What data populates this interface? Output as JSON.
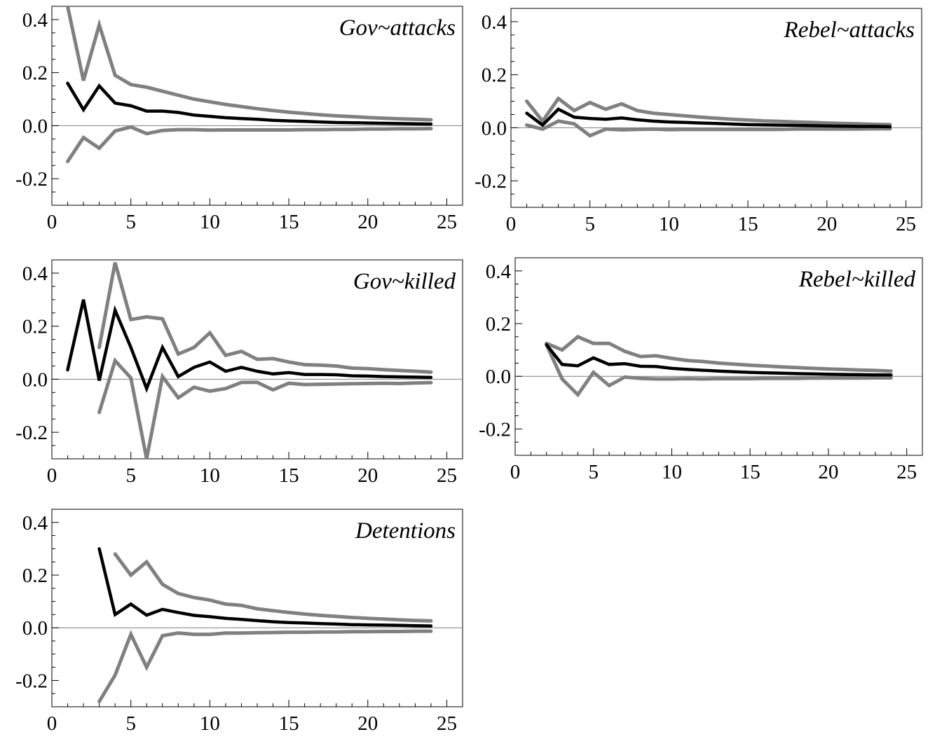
{
  "chart_data": [
    {
      "type": "line",
      "title": "Gov~attacks",
      "xlabel": "",
      "ylabel": "",
      "xlim": [
        0,
        26
      ],
      "ylim": [
        -0.3,
        0.45
      ],
      "xticks": [
        0,
        5,
        10,
        15,
        20,
        25
      ],
      "xtick_labels": [
        "0",
        "5",
        "10",
        "15",
        "20",
        "25"
      ],
      "yticks": [
        -0.2,
        0.0,
        0.2,
        0.4
      ],
      "ytick_labels": [
        "-0.2",
        "0.0",
        "0.2",
        "0.4"
      ],
      "zero_line": true,
      "series": [
        {
          "role": "estimate",
          "color": "#000000",
          "x": [
            1,
            2,
            3,
            4,
            5,
            6,
            7,
            8,
            9,
            10,
            11,
            12,
            13,
            14,
            15,
            16,
            17,
            18,
            19,
            20,
            21,
            22,
            23,
            24
          ],
          "values": [
            0.16,
            0.06,
            0.15,
            0.085,
            0.075,
            0.055,
            0.055,
            0.05,
            0.04,
            0.035,
            0.03,
            0.027,
            0.024,
            0.02,
            0.018,
            0.016,
            0.014,
            0.012,
            0.011,
            0.01,
            0.009,
            0.008,
            0.007,
            0.006
          ]
        },
        {
          "role": "upper band",
          "color": "#808080",
          "x": [
            1,
            2,
            3,
            4,
            5,
            6,
            7,
            8,
            9,
            10,
            11,
            12,
            13,
            14,
            15,
            16,
            17,
            18,
            19,
            20,
            21,
            22,
            23,
            24
          ],
          "values": [
            0.45,
            0.17,
            0.38,
            0.19,
            0.155,
            0.145,
            0.13,
            0.115,
            0.1,
            0.09,
            0.08,
            0.072,
            0.064,
            0.057,
            0.051,
            0.046,
            0.041,
            0.037,
            0.034,
            0.031,
            0.028,
            0.026,
            0.024,
            0.022
          ]
        },
        {
          "role": "lower band",
          "color": "#808080",
          "x": [
            1,
            2,
            3,
            4,
            5,
            6,
            7,
            8,
            9,
            10,
            11,
            12,
            13,
            14,
            15,
            16,
            17,
            18,
            19,
            20,
            21,
            22,
            23,
            24
          ],
          "values": [
            -0.135,
            -0.045,
            -0.085,
            -0.02,
            -0.005,
            -0.03,
            -0.018,
            -0.015,
            -0.015,
            -0.017,
            -0.016,
            -0.016,
            -0.016,
            -0.016,
            -0.016,
            -0.015,
            -0.015,
            -0.014,
            -0.014,
            -0.013,
            -0.013,
            -0.012,
            -0.012,
            -0.011
          ]
        }
      ]
    },
    {
      "type": "line",
      "title": "Rebel~attacks",
      "xlabel": "",
      "ylabel": "",
      "xlim": [
        0,
        26
      ],
      "ylim": [
        -0.3,
        0.45
      ],
      "xticks": [
        0,
        5,
        10,
        15,
        20,
        25
      ],
      "xtick_labels": [
        "0",
        "5",
        "10",
        "15",
        "20",
        "25"
      ],
      "yticks": [
        -0.2,
        0.0,
        0.2,
        0.4
      ],
      "ytick_labels": [
        "-0.2",
        "0.0",
        "0.2",
        "0.4"
      ],
      "zero_line": true,
      "series": [
        {
          "role": "estimate",
          "color": "#000000",
          "x": [
            1,
            2,
            3,
            4,
            5,
            6,
            7,
            8,
            9,
            10,
            11,
            12,
            13,
            14,
            15,
            16,
            17,
            18,
            19,
            20,
            21,
            22,
            23,
            24
          ],
          "values": [
            0.055,
            0.01,
            0.07,
            0.04,
            0.035,
            0.032,
            0.037,
            0.03,
            0.025,
            0.022,
            0.02,
            0.018,
            0.016,
            0.014,
            0.012,
            0.011,
            0.01,
            0.009,
            0.008,
            0.007,
            0.006,
            0.005,
            0.005,
            0.004
          ]
        },
        {
          "role": "upper band",
          "color": "#808080",
          "x": [
            1,
            2,
            3,
            4,
            5,
            6,
            7,
            8,
            9,
            10,
            11,
            12,
            13,
            14,
            15,
            16,
            17,
            18,
            19,
            20,
            21,
            22,
            23,
            24
          ],
          "values": [
            0.1,
            0.025,
            0.11,
            0.065,
            0.095,
            0.07,
            0.09,
            0.065,
            0.055,
            0.05,
            0.045,
            0.04,
            0.036,
            0.032,
            0.029,
            0.026,
            0.024,
            0.022,
            0.02,
            0.018,
            0.016,
            0.015,
            0.013,
            0.012
          ]
        },
        {
          "role": "lower band",
          "color": "#808080",
          "x": [
            1,
            2,
            3,
            4,
            5,
            6,
            7,
            8,
            9,
            10,
            11,
            12,
            13,
            14,
            15,
            16,
            17,
            18,
            19,
            20,
            21,
            22,
            23,
            24
          ],
          "values": [
            0.01,
            -0.005,
            0.025,
            0.015,
            -0.03,
            -0.005,
            -0.008,
            -0.006,
            -0.005,
            -0.007,
            -0.006,
            -0.006,
            -0.006,
            -0.006,
            -0.006,
            -0.006,
            -0.006,
            -0.005,
            -0.005,
            -0.005,
            -0.005,
            -0.005,
            -0.004,
            -0.004
          ]
        }
      ]
    },
    {
      "type": "line",
      "title": "Gov~killed",
      "xlabel": "",
      "ylabel": "",
      "xlim": [
        0,
        26
      ],
      "ylim": [
        -0.3,
        0.45
      ],
      "xticks": [
        0,
        5,
        10,
        15,
        20,
        25
      ],
      "xtick_labels": [
        "0",
        "5",
        "10",
        "15",
        "20",
        "25"
      ],
      "yticks": [
        -0.2,
        0.0,
        0.2,
        0.4
      ],
      "ytick_labels": [
        "-0.2",
        "0.0",
        "0.2",
        "0.4"
      ],
      "zero_line": true,
      "series": [
        {
          "role": "estimate",
          "color": "#000000",
          "x": [
            1,
            2,
            3,
            4,
            5,
            6,
            7,
            8,
            9,
            10,
            11,
            12,
            13,
            14,
            15,
            16,
            17,
            18,
            19,
            20,
            21,
            22,
            23,
            24
          ],
          "values": [
            0.035,
            0.3,
            -0.005,
            0.26,
            0.12,
            -0.035,
            0.12,
            0.01,
            0.045,
            0.065,
            0.03,
            0.045,
            0.03,
            0.02,
            0.025,
            0.018,
            0.018,
            0.017,
            0.013,
            0.012,
            0.01,
            0.009,
            0.008,
            0.007
          ]
        },
        {
          "role": "upper band",
          "color": "#808080",
          "x": [
            3,
            4,
            5,
            6,
            7,
            8,
            9,
            10,
            11,
            12,
            13,
            14,
            15,
            16,
            17,
            18,
            19,
            20,
            21,
            22,
            23,
            24
          ],
          "values": [
            0.12,
            0.44,
            0.225,
            0.235,
            0.228,
            0.095,
            0.12,
            0.175,
            0.09,
            0.105,
            0.075,
            0.078,
            0.065,
            0.055,
            0.053,
            0.05,
            0.042,
            0.04,
            0.036,
            0.033,
            0.03,
            0.027
          ]
        },
        {
          "role": "lower band",
          "color": "#808080",
          "x": [
            3,
            4,
            5,
            6,
            7,
            8,
            9,
            10,
            11,
            12,
            13,
            14,
            15,
            16,
            17,
            18,
            19,
            20,
            21,
            22,
            23,
            24
          ],
          "values": [
            -0.125,
            0.07,
            0.005,
            -0.3,
            0.01,
            -0.07,
            -0.03,
            -0.045,
            -0.035,
            -0.012,
            -0.012,
            -0.04,
            -0.015,
            -0.02,
            -0.019,
            -0.018,
            -0.017,
            -0.016,
            -0.015,
            -0.016,
            -0.014,
            -0.013
          ]
        }
      ]
    },
    {
      "type": "line",
      "title": "Rebel~killed",
      "xlabel": "",
      "ylabel": "",
      "xlim": [
        0,
        26
      ],
      "ylim": [
        -0.3,
        0.45
      ],
      "xticks": [
        0,
        5,
        10,
        15,
        20,
        25
      ],
      "xtick_labels": [
        "0",
        "5",
        "10",
        "15",
        "20",
        "25"
      ],
      "yticks": [
        -0.2,
        0.0,
        0.2,
        0.4
      ],
      "ytick_labels": [
        "-0.2",
        "0.0",
        "0.2",
        "0.4"
      ],
      "zero_line": true,
      "series": [
        {
          "role": "estimate",
          "color": "#000000",
          "x": [
            2,
            3,
            4,
            5,
            6,
            7,
            8,
            9,
            10,
            11,
            12,
            13,
            14,
            15,
            16,
            17,
            18,
            19,
            20,
            21,
            22,
            23,
            24
          ],
          "values": [
            0.12,
            0.045,
            0.04,
            0.07,
            0.045,
            0.048,
            0.038,
            0.037,
            0.03,
            0.026,
            0.023,
            0.02,
            0.017,
            0.015,
            0.013,
            0.012,
            0.01,
            0.009,
            0.008,
            0.007,
            0.006,
            0.005,
            0.005
          ]
        },
        {
          "role": "upper band",
          "color": "#808080",
          "x": [
            2,
            3,
            4,
            5,
            6,
            7,
            8,
            9,
            10,
            11,
            12,
            13,
            14,
            15,
            16,
            17,
            18,
            19,
            20,
            21,
            22,
            23,
            24
          ],
          "values": [
            0.125,
            0.1,
            0.15,
            0.125,
            0.125,
            0.095,
            0.075,
            0.078,
            0.068,
            0.06,
            0.056,
            0.05,
            0.046,
            0.042,
            0.039,
            0.036,
            0.033,
            0.03,
            0.028,
            0.026,
            0.024,
            0.022,
            0.02
          ]
        },
        {
          "role": "lower band",
          "color": "#808080",
          "x": [
            2,
            3,
            4,
            5,
            6,
            7,
            8,
            9,
            10,
            11,
            12,
            13,
            14,
            15,
            16,
            17,
            18,
            19,
            20,
            21,
            22,
            23,
            24
          ],
          "values": [
            0.12,
            -0.01,
            -0.07,
            0.015,
            -0.035,
            -0.003,
            -0.008,
            -0.01,
            -0.01,
            -0.009,
            -0.01,
            -0.009,
            -0.009,
            -0.009,
            -0.008,
            -0.008,
            -0.008,
            -0.007,
            -0.007,
            -0.007,
            -0.007,
            -0.006,
            -0.006
          ]
        }
      ]
    },
    {
      "type": "line",
      "title": "Detentions",
      "xlabel": "",
      "ylabel": "",
      "xlim": [
        0,
        26
      ],
      "ylim": [
        -0.3,
        0.45
      ],
      "xticks": [
        0,
        5,
        10,
        15,
        20,
        25
      ],
      "xtick_labels": [
        "0",
        "5",
        "10",
        "15",
        "20",
        "25"
      ],
      "yticks": [
        -0.2,
        0.0,
        0.2,
        0.4
      ],
      "ytick_labels": [
        "-0.2",
        "0.0",
        "0.2",
        "0.4"
      ],
      "zero_line": true,
      "series": [
        {
          "role": "estimate",
          "color": "#000000",
          "x": [
            3,
            4,
            5,
            6,
            7,
            8,
            9,
            10,
            11,
            12,
            13,
            14,
            15,
            16,
            17,
            18,
            19,
            20,
            21,
            22,
            23,
            24
          ],
          "values": [
            0.3,
            0.05,
            0.09,
            0.048,
            0.07,
            0.058,
            0.047,
            0.042,
            0.036,
            0.032,
            0.027,
            0.023,
            0.02,
            0.018,
            0.016,
            0.014,
            0.012,
            0.011,
            0.01,
            0.009,
            0.008,
            0.007
          ]
        },
        {
          "role": "upper band",
          "color": "#808080",
          "x": [
            4,
            5,
            6,
            7,
            8,
            9,
            10,
            11,
            12,
            13,
            14,
            15,
            16,
            17,
            18,
            19,
            20,
            21,
            22,
            23,
            24
          ],
          "values": [
            0.28,
            0.2,
            0.25,
            0.165,
            0.13,
            0.115,
            0.105,
            0.09,
            0.085,
            0.072,
            0.065,
            0.058,
            0.052,
            0.047,
            0.043,
            0.039,
            0.036,
            0.033,
            0.03,
            0.028,
            0.026
          ]
        },
        {
          "role": "lower band",
          "color": "#808080",
          "x": [
            3,
            4,
            5,
            6,
            7,
            8,
            9,
            10,
            11,
            12,
            13,
            14,
            15,
            16,
            17,
            18,
            19,
            20,
            21,
            22,
            23,
            24
          ],
          "values": [
            -0.28,
            -0.18,
            -0.025,
            -0.15,
            -0.03,
            -0.02,
            -0.025,
            -0.025,
            -0.02,
            -0.02,
            -0.019,
            -0.018,
            -0.017,
            -0.017,
            -0.016,
            -0.016,
            -0.015,
            -0.015,
            -0.014,
            -0.014,
            -0.013,
            -0.013
          ]
        }
      ]
    }
  ]
}
